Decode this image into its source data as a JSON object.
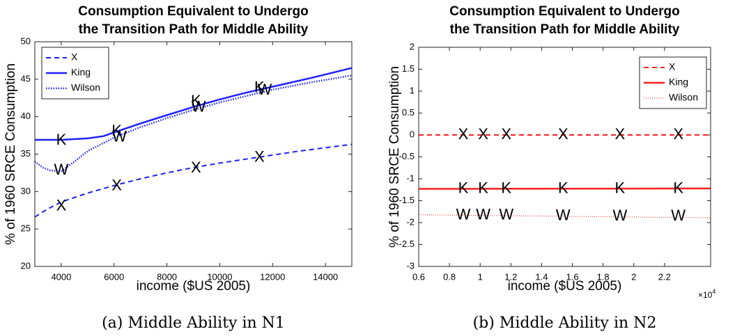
{
  "chart_data": [
    {
      "type": "line",
      "title": [
        "Consumption Equivalent to Undergo",
        "the Transition Path for Middle Ability"
      ],
      "x_label": "income ($US 2005)",
      "y_label": "% of 1960 SRCE Consumption",
      "caption": "(a) Middle Ability in N1",
      "xlim": [
        3000,
        15000
      ],
      "xticks": [
        4000,
        6000,
        8000,
        10000,
        12000,
        14000
      ],
      "ylim": [
        20,
        50
      ],
      "yticks": [
        20,
        25,
        30,
        35,
        40,
        45,
        50
      ],
      "legend": "upper left",
      "series": [
        {
          "name": "X",
          "color": "#1f1fff",
          "dash": "dashed",
          "x": [
            3000,
            3500,
            4000,
            5000,
            6000,
            7000,
            8000,
            9000,
            10000,
            11500,
            13000,
            15000
          ],
          "values": [
            26.6,
            27.7,
            28.6,
            29.8,
            30.8,
            31.7,
            32.5,
            33.2,
            33.8,
            34.6,
            35.4,
            36.3
          ],
          "marker": "X",
          "marker_x": [
            4000,
            6100,
            9100,
            11500
          ],
          "marker_values": [
            28,
            30.7,
            33.1,
            34.5
          ]
        },
        {
          "name": "King",
          "color": "#1f1fff",
          "dash": "solid",
          "x": [
            3000,
            4000,
            5000,
            5600,
            6000,
            7000,
            8000,
            9000,
            10000,
            11000,
            12000,
            13500,
            15000
          ],
          "values": [
            36.9,
            36.9,
            37.1,
            37.4,
            37.9,
            39.1,
            40.2,
            41.3,
            42.3,
            43.2,
            44.0,
            45.2,
            46.5
          ],
          "marker": "K",
          "marker_x": [
            4000,
            6100,
            9100,
            11500
          ],
          "marker_values": [
            36.8,
            38,
            42,
            43.8
          ]
        },
        {
          "name": "Wilson",
          "color": "#1f1fff",
          "dash": "dotted",
          "x": [
            3000,
            3300,
            3600,
            4000,
            4500,
            5000,
            6000,
            7000,
            8000,
            9000,
            10000,
            12000,
            13500,
            15000
          ],
          "values": [
            34,
            33.2,
            32.8,
            32.7,
            34,
            35.4,
            37.2,
            38.6,
            39.8,
            40.9,
            41.9,
            43.6,
            44.6,
            45.5
          ],
          "marker": "W",
          "marker_x": [
            4000,
            6200,
            9200,
            11700
          ],
          "marker_values": [
            32.8,
            37.2,
            41.2,
            43.5
          ]
        }
      ]
    },
    {
      "type": "line",
      "title": [
        "Consumption Equivalent to Undergo",
        "the Transition Path for Middle Ability"
      ],
      "x_label": "income ($US 2005)",
      "y_label": "% of 1960 SRCE Consumption",
      "caption": "(b) Middle Ability in N2",
      "x_multiplier": {
        "base": "×10",
        "exponent": "4"
      },
      "xlim": [
        0.6,
        2.5
      ],
      "xticks": [
        0.6,
        0.8,
        1,
        1.2,
        1.4,
        1.6,
        1.8,
        2,
        2.2
      ],
      "ylim": [
        -3,
        2
      ],
      "yticks": [
        -3,
        -2.5,
        -2,
        -1.5,
        -1,
        -0.5,
        0,
        0.5,
        1,
        1.5,
        2
      ],
      "legend": "upper right",
      "series": [
        {
          "name": "X",
          "color": "#ff1f1f",
          "dash": "dashed",
          "x": [
            0.6,
            2.5
          ],
          "values": [
            0,
            0
          ],
          "marker": "X",
          "marker_x": [
            0.89,
            1.02,
            1.17,
            1.54,
            1.91,
            2.29
          ],
          "marker_values": [
            0,
            0,
            0,
            0,
            0,
            0
          ]
        },
        {
          "name": "King",
          "color": "#ff1f1f",
          "dash": "solid",
          "x": [
            0.6,
            2.5
          ],
          "values": [
            -1.23,
            -1.22
          ],
          "marker": "K",
          "marker_x": [
            0.89,
            1.02,
            1.17,
            1.54,
            1.91,
            2.29
          ],
          "marker_values": [
            -1.23,
            -1.23,
            -1.23,
            -1.23,
            -1.23,
            -1.23
          ]
        },
        {
          "name": "Wilson",
          "color": "#ff1f1f",
          "dash": "thin-dotted",
          "x": [
            0.6,
            2.5
          ],
          "values": [
            -1.82,
            -1.89
          ],
          "marker": "W",
          "marker_x": [
            0.89,
            1.02,
            1.17,
            1.54,
            1.91,
            2.29
          ],
          "marker_values": [
            -1.84,
            -1.84,
            -1.84,
            -1.85,
            -1.86,
            -1.86
          ]
        }
      ]
    }
  ]
}
